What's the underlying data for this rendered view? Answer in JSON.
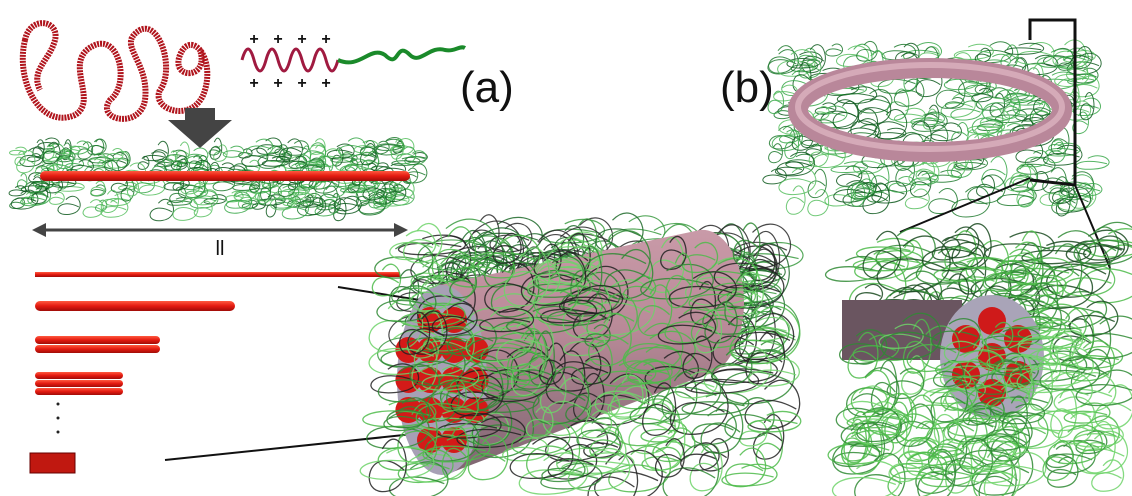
{
  "panel_a": {
    "label": "(a)",
    "length_label": "ll",
    "charge_symbol": "+"
  },
  "panel_b": {
    "label": "(b)"
  }
}
